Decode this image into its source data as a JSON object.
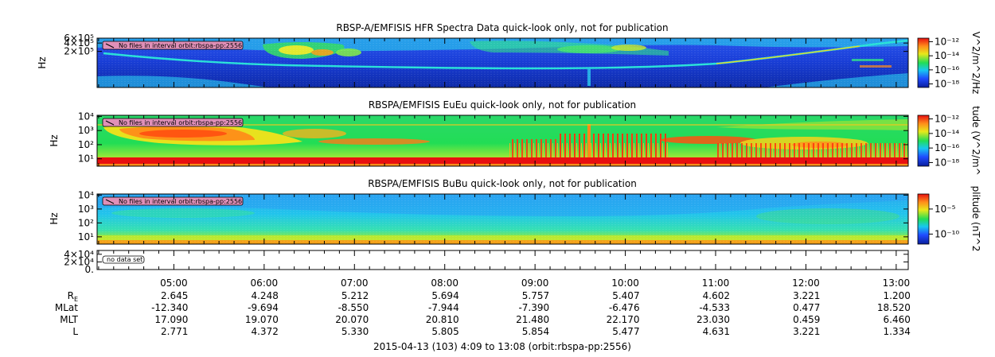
{
  "chart_data": [
    {
      "type": "heatmap",
      "title": "RBSP-A/EMFISIS  HFR Spectra Data quick-look only, not for publication",
      "ylabel": "Hz",
      "ytick_labels": [
        "6×10⁵",
        "4×10⁵",
        "2×10⁵"
      ],
      "yticks": [
        600000,
        400000,
        200000
      ],
      "ylim": [
        10000,
        600000
      ],
      "colorbar_label": "V^2/m^2/Hz",
      "colorbar_tick_labels": [
        "10⁻¹²",
        "10⁻¹⁴",
        "10⁻¹⁶",
        "10⁻¹⁸"
      ],
      "colorbar_ticks": [
        -12,
        -14,
        -16,
        -18
      ],
      "annotation": "No files in interval orbit:rbspa-pp:2556"
    },
    {
      "type": "heatmap",
      "title": "RBSPA/EMFISIS  EuEu quick-look only, not for publication",
      "ylabel": "Hz",
      "ytick_labels": [
        "10⁴",
        "10³",
        "10²",
        "10¹"
      ],
      "yticks": [
        10000,
        1000,
        100,
        10
      ],
      "ylim": [
        3,
        12000
      ],
      "colorbar_label": "tude (V^2/m^",
      "colorbar_tick_labels": [
        "10⁻¹²",
        "10⁻¹⁴",
        "10⁻¹⁶",
        "10⁻¹⁸"
      ],
      "colorbar_ticks": [
        -12,
        -14,
        -16,
        -18
      ],
      "annotation": "No files in interval orbit:rbspa-pp:2556"
    },
    {
      "type": "heatmap",
      "title": "RBSPA/EMFISIS  BuBu quick-look only, not for publication",
      "ylabel": "Hz",
      "ytick_labels": [
        "10⁴",
        "10³",
        "10²",
        "10¹"
      ],
      "yticks": [
        10000,
        1000,
        100,
        10
      ],
      "ylim": [
        3,
        12000
      ],
      "colorbar_label": "plitude (nT^2",
      "colorbar_tick_labels": [
        "10⁻⁵",
        "10⁻¹⁰"
      ],
      "colorbar_ticks": [
        -5,
        -10
      ],
      "annotation": "No files in interval orbit:rbspa-pp:2556"
    },
    {
      "type": "line",
      "title": "",
      "ytick_labels": [
        "4×10⁴",
        "2×10⁴",
        "0."
      ],
      "yticks": [
        40000,
        20000,
        0
      ],
      "ylim": [
        0,
        50000
      ],
      "annotation": "no data set"
    }
  ],
  "time_axis": {
    "range": [
      "04:09",
      "13:08"
    ],
    "tick_labels": [
      "05:00",
      "06:00",
      "07:00",
      "08:00",
      "09:00",
      "10:00",
      "11:00",
      "12:00",
      "13:00"
    ],
    "rows": [
      {
        "label": "R",
        "subscript": "E",
        "values": [
          "2.645",
          "4.248",
          "5.212",
          "5.694",
          "5.757",
          "5.407",
          "4.602",
          "3.221",
          "1.200"
        ]
      },
      {
        "label": "MLat",
        "values": [
          "-12.340",
          "-9.694",
          "-8.550",
          "-7.944",
          "-7.390",
          "-6.476",
          "-4.533",
          "0.477",
          "18.520"
        ]
      },
      {
        "label": "MLT",
        "values": [
          "17.090",
          "19.070",
          "20.070",
          "20.810",
          "21.480",
          "22.170",
          "23.030",
          "0.459",
          "6.460"
        ]
      },
      {
        "label": "L",
        "values": [
          "2.771",
          "4.372",
          "5.330",
          "5.805",
          "5.854",
          "5.477",
          "4.631",
          "3.221",
          "1.334"
        ]
      }
    ],
    "caption": "2015-04-13 (103) 4:09 to 13:08 (orbit:rbspa-pp:2556)"
  },
  "colors": {
    "hfr_background": "#1a3fd8",
    "efield_background": "#22dd55",
    "bfield_background": "#22b4ee",
    "label_box": "#e090b8"
  }
}
